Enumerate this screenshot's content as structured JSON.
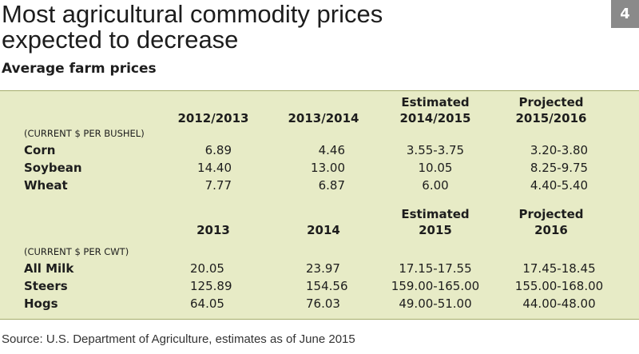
{
  "header": {
    "title_lines": [
      "Most agricultural commodity prices",
      "expected to decrease"
    ],
    "badge": "4",
    "subtitle": "Average farm prices"
  },
  "sections": [
    {
      "headers": [
        [
          "2012/2013"
        ],
        [
          "2013/2014"
        ],
        [
          "Estimated",
          "2014/2015"
        ],
        [
          "Projected",
          "2015/2016"
        ]
      ],
      "unit": "(CURRENT $ PER BUSHEL)",
      "rows": [
        [
          "Corn",
          "6.89",
          "4.46",
          "3.55-3.75",
          "3.20-3.80"
        ],
        [
          "Soybean",
          "14.40",
          "13.00",
          "10.05",
          "8.25-9.75"
        ],
        [
          "Wheat",
          "7.77",
          "6.87",
          "6.00",
          "4.40-5.40"
        ]
      ]
    },
    {
      "headers": [
        [
          "2013"
        ],
        [
          "2014"
        ],
        [
          "Estimated",
          "2015"
        ],
        [
          "Projected",
          "2016"
        ]
      ],
      "unit": "(CURRENT $ PER CWT)",
      "rows": [
        [
          "All Milk",
          "20.05",
          "23.97",
          "17.15-17.55",
          "17.45-18.45"
        ],
        [
          "Steers",
          "125.89",
          "154.56",
          "159.00-165.00",
          "155.00-168.00"
        ],
        [
          "Hogs",
          "64.05",
          "76.03",
          "49.00-51.00",
          "44.00-48.00"
        ]
      ]
    }
  ],
  "source": "Source: U.S. Department of Agriculture, estimates as of June 2015"
}
